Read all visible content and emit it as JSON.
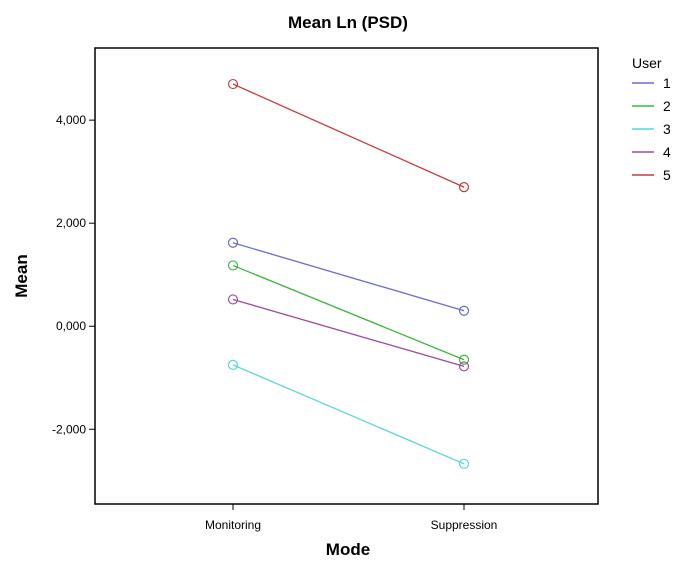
{
  "chart_data": {
    "type": "line",
    "title": "Mean Ln (PSD)",
    "xlabel": "Mode",
    "ylabel": "Mean",
    "categories": [
      "Monitoring",
      "Suppression"
    ],
    "yticks": [
      -2,
      0,
      2,
      4
    ],
    "ytick_labels": [
      "-2,000",
      "0,000",
      "2,000",
      "4,000"
    ],
    "ylim": [
      -3.45,
      5.4
    ],
    "grid": false,
    "legend": {
      "title": "User",
      "placement": "right"
    },
    "series": [
      {
        "name": "1",
        "color": "#6b6bd6",
        "values": [
          1.62,
          0.3
        ]
      },
      {
        "name": "2",
        "color": "#3cb83c",
        "values": [
          1.18,
          -0.65
        ]
      },
      {
        "name": "3",
        "color": "#5cd6d6",
        "values": [
          -0.75,
          -2.67
        ]
      },
      {
        "name": "4",
        "color": "#9c4c9c",
        "values": [
          0.52,
          -0.78
        ]
      },
      {
        "name": "5",
        "color": "#c83c3c",
        "values": [
          4.7,
          2.7
        ]
      }
    ]
  }
}
